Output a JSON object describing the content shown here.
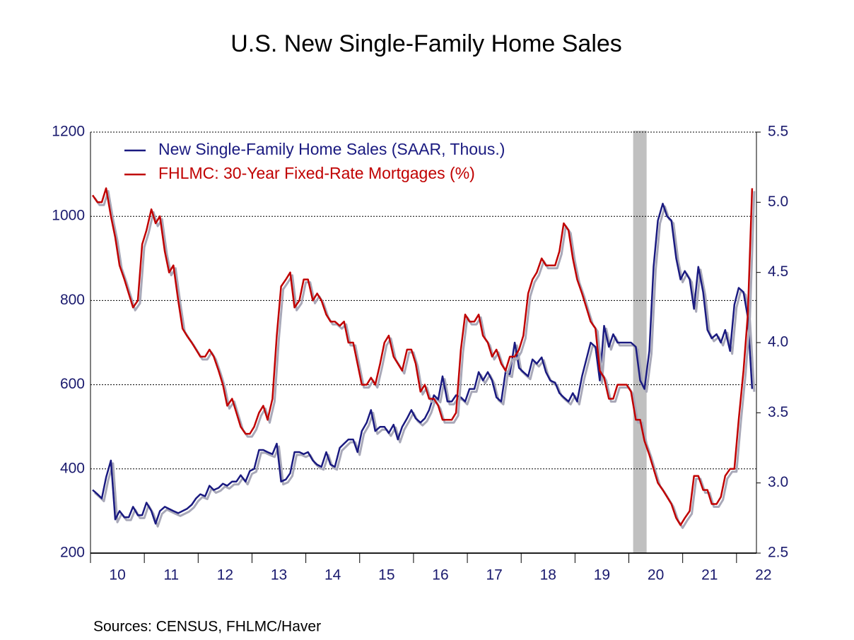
{
  "chart_data": {
    "type": "line",
    "title": "U.S. New Single-Family Home Sales",
    "source": "Sources:  CENSUS, FHLMC/Haver",
    "xlim": [
      2010,
      2022.37
    ],
    "xticks": [
      {
        "value": 2010.5,
        "label": "10"
      },
      {
        "value": 2011.5,
        "label": "11"
      },
      {
        "value": 2012.5,
        "label": "12"
      },
      {
        "value": 2013.5,
        "label": "13"
      },
      {
        "value": 2014.5,
        "label": "14"
      },
      {
        "value": 2015.5,
        "label": "15"
      },
      {
        "value": 2016.5,
        "label": "16"
      },
      {
        "value": 2017.5,
        "label": "17"
      },
      {
        "value": 2018.5,
        "label": "18"
      },
      {
        "value": 2019.5,
        "label": "19"
      },
      {
        "value": 2020.5,
        "label": "20"
      },
      {
        "value": 2021.5,
        "label": "21"
      },
      {
        "value": 2022.5,
        "label": "22"
      }
    ],
    "xbounds": [
      2010,
      2011,
      2012,
      2013,
      2014,
      2015,
      2016,
      2017,
      2018,
      2019,
      2020,
      2021,
      2022
    ],
    "ylim": [
      200,
      1200
    ],
    "yticks": [
      200,
      400,
      600,
      800,
      1000,
      1200
    ],
    "y2lim": [
      2.5,
      5.5
    ],
    "y2ticks": [
      2.5,
      {
        "value": 3,
        "label": "3.0"
      },
      3.5,
      {
        "value": 4,
        "label": "4.0"
      },
      4.5,
      {
        "value": 5,
        "label": "5.0"
      },
      5.5
    ],
    "grid": true,
    "legend": "upper left",
    "shading": [
      2020.08,
      2020.33
    ],
    "shading_color": "#c0c0c0",
    "axis_color": "#1a1a6e",
    "x": [
      2010.04,
      2010.13,
      2010.21,
      2010.29,
      2010.38,
      2010.46,
      2010.54,
      2010.63,
      2010.71,
      2010.79,
      2010.88,
      2010.96,
      2011.04,
      2011.13,
      2011.21,
      2011.29,
      2011.38,
      2011.46,
      2011.54,
      2011.63,
      2011.71,
      2011.79,
      2011.88,
      2011.96,
      2012.04,
      2012.13,
      2012.21,
      2012.29,
      2012.38,
      2012.46,
      2012.54,
      2012.63,
      2012.71,
      2012.79,
      2012.88,
      2012.96,
      2013.04,
      2013.13,
      2013.21,
      2013.29,
      2013.38,
      2013.46,
      2013.54,
      2013.63,
      2013.71,
      2013.79,
      2013.88,
      2013.96,
      2014.04,
      2014.13,
      2014.21,
      2014.29,
      2014.38,
      2014.46,
      2014.54,
      2014.63,
      2014.71,
      2014.79,
      2014.88,
      2014.96,
      2015.04,
      2015.13,
      2015.21,
      2015.29,
      2015.38,
      2015.46,
      2015.54,
      2015.63,
      2015.71,
      2015.79,
      2015.88,
      2015.96,
      2016.04,
      2016.13,
      2016.21,
      2016.29,
      2016.38,
      2016.46,
      2016.54,
      2016.63,
      2016.71,
      2016.79,
      2016.88,
      2016.96,
      2017.04,
      2017.13,
      2017.21,
      2017.29,
      2017.38,
      2017.46,
      2017.54,
      2017.63,
      2017.71,
      2017.79,
      2017.88,
      2017.96,
      2018.04,
      2018.13,
      2018.21,
      2018.29,
      2018.38,
      2018.46,
      2018.54,
      2018.63,
      2018.71,
      2018.79,
      2018.88,
      2018.96,
      2019.04,
      2019.13,
      2019.21,
      2019.29,
      2019.38,
      2019.46,
      2019.54,
      2019.63,
      2019.71,
      2019.79,
      2019.88,
      2019.96,
      2020.04,
      2020.13,
      2020.21,
      2020.29,
      2020.38,
      2020.46,
      2020.54,
      2020.63,
      2020.71,
      2020.79,
      2020.88,
      2020.96,
      2021.04,
      2021.13,
      2021.21,
      2021.29,
      2021.38,
      2021.46,
      2021.54,
      2021.63,
      2021.71,
      2021.79,
      2021.88,
      2021.96,
      2022.04,
      2022.13,
      2022.21,
      2022.29
    ],
    "series": [
      {
        "name": "New Single-Family Home Sales (SAAR, Thous.)",
        "color": "#1a1a80",
        "axis": "y",
        "values": [
          350,
          340,
          330,
          380,
          420,
          280,
          300,
          285,
          285,
          310,
          290,
          290,
          320,
          300,
          270,
          300,
          310,
          305,
          300,
          295,
          300,
          305,
          315,
          330,
          340,
          335,
          360,
          350,
          355,
          365,
          360,
          370,
          370,
          385,
          370,
          395,
          400,
          445,
          445,
          440,
          435,
          460,
          370,
          375,
          390,
          440,
          440,
          435,
          440,
          420,
          410,
          405,
          440,
          410,
          405,
          450,
          460,
          470,
          470,
          440,
          490,
          510,
          540,
          490,
          500,
          500,
          485,
          505,
          470,
          500,
          520,
          540,
          520,
          510,
          520,
          540,
          575,
          565,
          620,
          560,
          560,
          575,
          570,
          560,
          590,
          590,
          630,
          610,
          630,
          610,
          570,
          560,
          630,
          625,
          700,
          640,
          630,
          620,
          660,
          650,
          665,
          630,
          610,
          605,
          580,
          570,
          560,
          580,
          560,
          620,
          660,
          700,
          690,
          610,
          740,
          690,
          720,
          700,
          700,
          700,
          700,
          690,
          610,
          590,
          680,
          880,
          990,
          1030,
          1000,
          990,
          900,
          850,
          870,
          850,
          780,
          880,
          820,
          730,
          710,
          720,
          700,
          730,
          680,
          790,
          830,
          820,
          760,
          590
        ]
      },
      {
        "name": "FHLMC: 30-Year Fixed-Rate Mortgages (%)",
        "color": "#c00000",
        "axis": "y2",
        "values": [
          5.05,
          5.0,
          5.0,
          5.1,
          4.9,
          4.75,
          4.55,
          4.45,
          4.35,
          4.25,
          4.3,
          4.7,
          4.8,
          4.95,
          4.85,
          4.9,
          4.65,
          4.5,
          4.55,
          4.3,
          4.1,
          4.05,
          4.0,
          3.95,
          3.9,
          3.9,
          3.95,
          3.9,
          3.8,
          3.7,
          3.55,
          3.6,
          3.5,
          3.4,
          3.35,
          3.35,
          3.4,
          3.5,
          3.55,
          3.45,
          3.6,
          4.05,
          4.4,
          4.45,
          4.5,
          4.25,
          4.3,
          4.45,
          4.45,
          4.3,
          4.35,
          4.3,
          4.2,
          4.15,
          4.15,
          4.12,
          4.15,
          4.0,
          4.0,
          3.85,
          3.7,
          3.7,
          3.75,
          3.7,
          3.85,
          4.0,
          4.05,
          3.9,
          3.85,
          3.8,
          3.95,
          3.95,
          3.85,
          3.65,
          3.7,
          3.6,
          3.6,
          3.55,
          3.45,
          3.45,
          3.45,
          3.5,
          3.95,
          4.2,
          4.15,
          4.15,
          4.2,
          4.05,
          4.0,
          3.9,
          3.95,
          3.85,
          3.8,
          3.9,
          3.9,
          3.95,
          4.05,
          4.35,
          4.45,
          4.5,
          4.6,
          4.55,
          4.55,
          4.55,
          4.65,
          4.85,
          4.8,
          4.6,
          4.45,
          4.35,
          4.25,
          4.15,
          4.1,
          3.8,
          3.75,
          3.6,
          3.6,
          3.7,
          3.7,
          3.7,
          3.65,
          3.45,
          3.45,
          3.3,
          3.2,
          3.1,
          3.0,
          2.95,
          2.9,
          2.85,
          2.75,
          2.7,
          2.75,
          2.8,
          3.05,
          3.05,
          2.95,
          2.95,
          2.85,
          2.85,
          2.9,
          3.05,
          3.1,
          3.1,
          3.45,
          3.8,
          4.2,
          5.1
        ]
      }
    ]
  }
}
